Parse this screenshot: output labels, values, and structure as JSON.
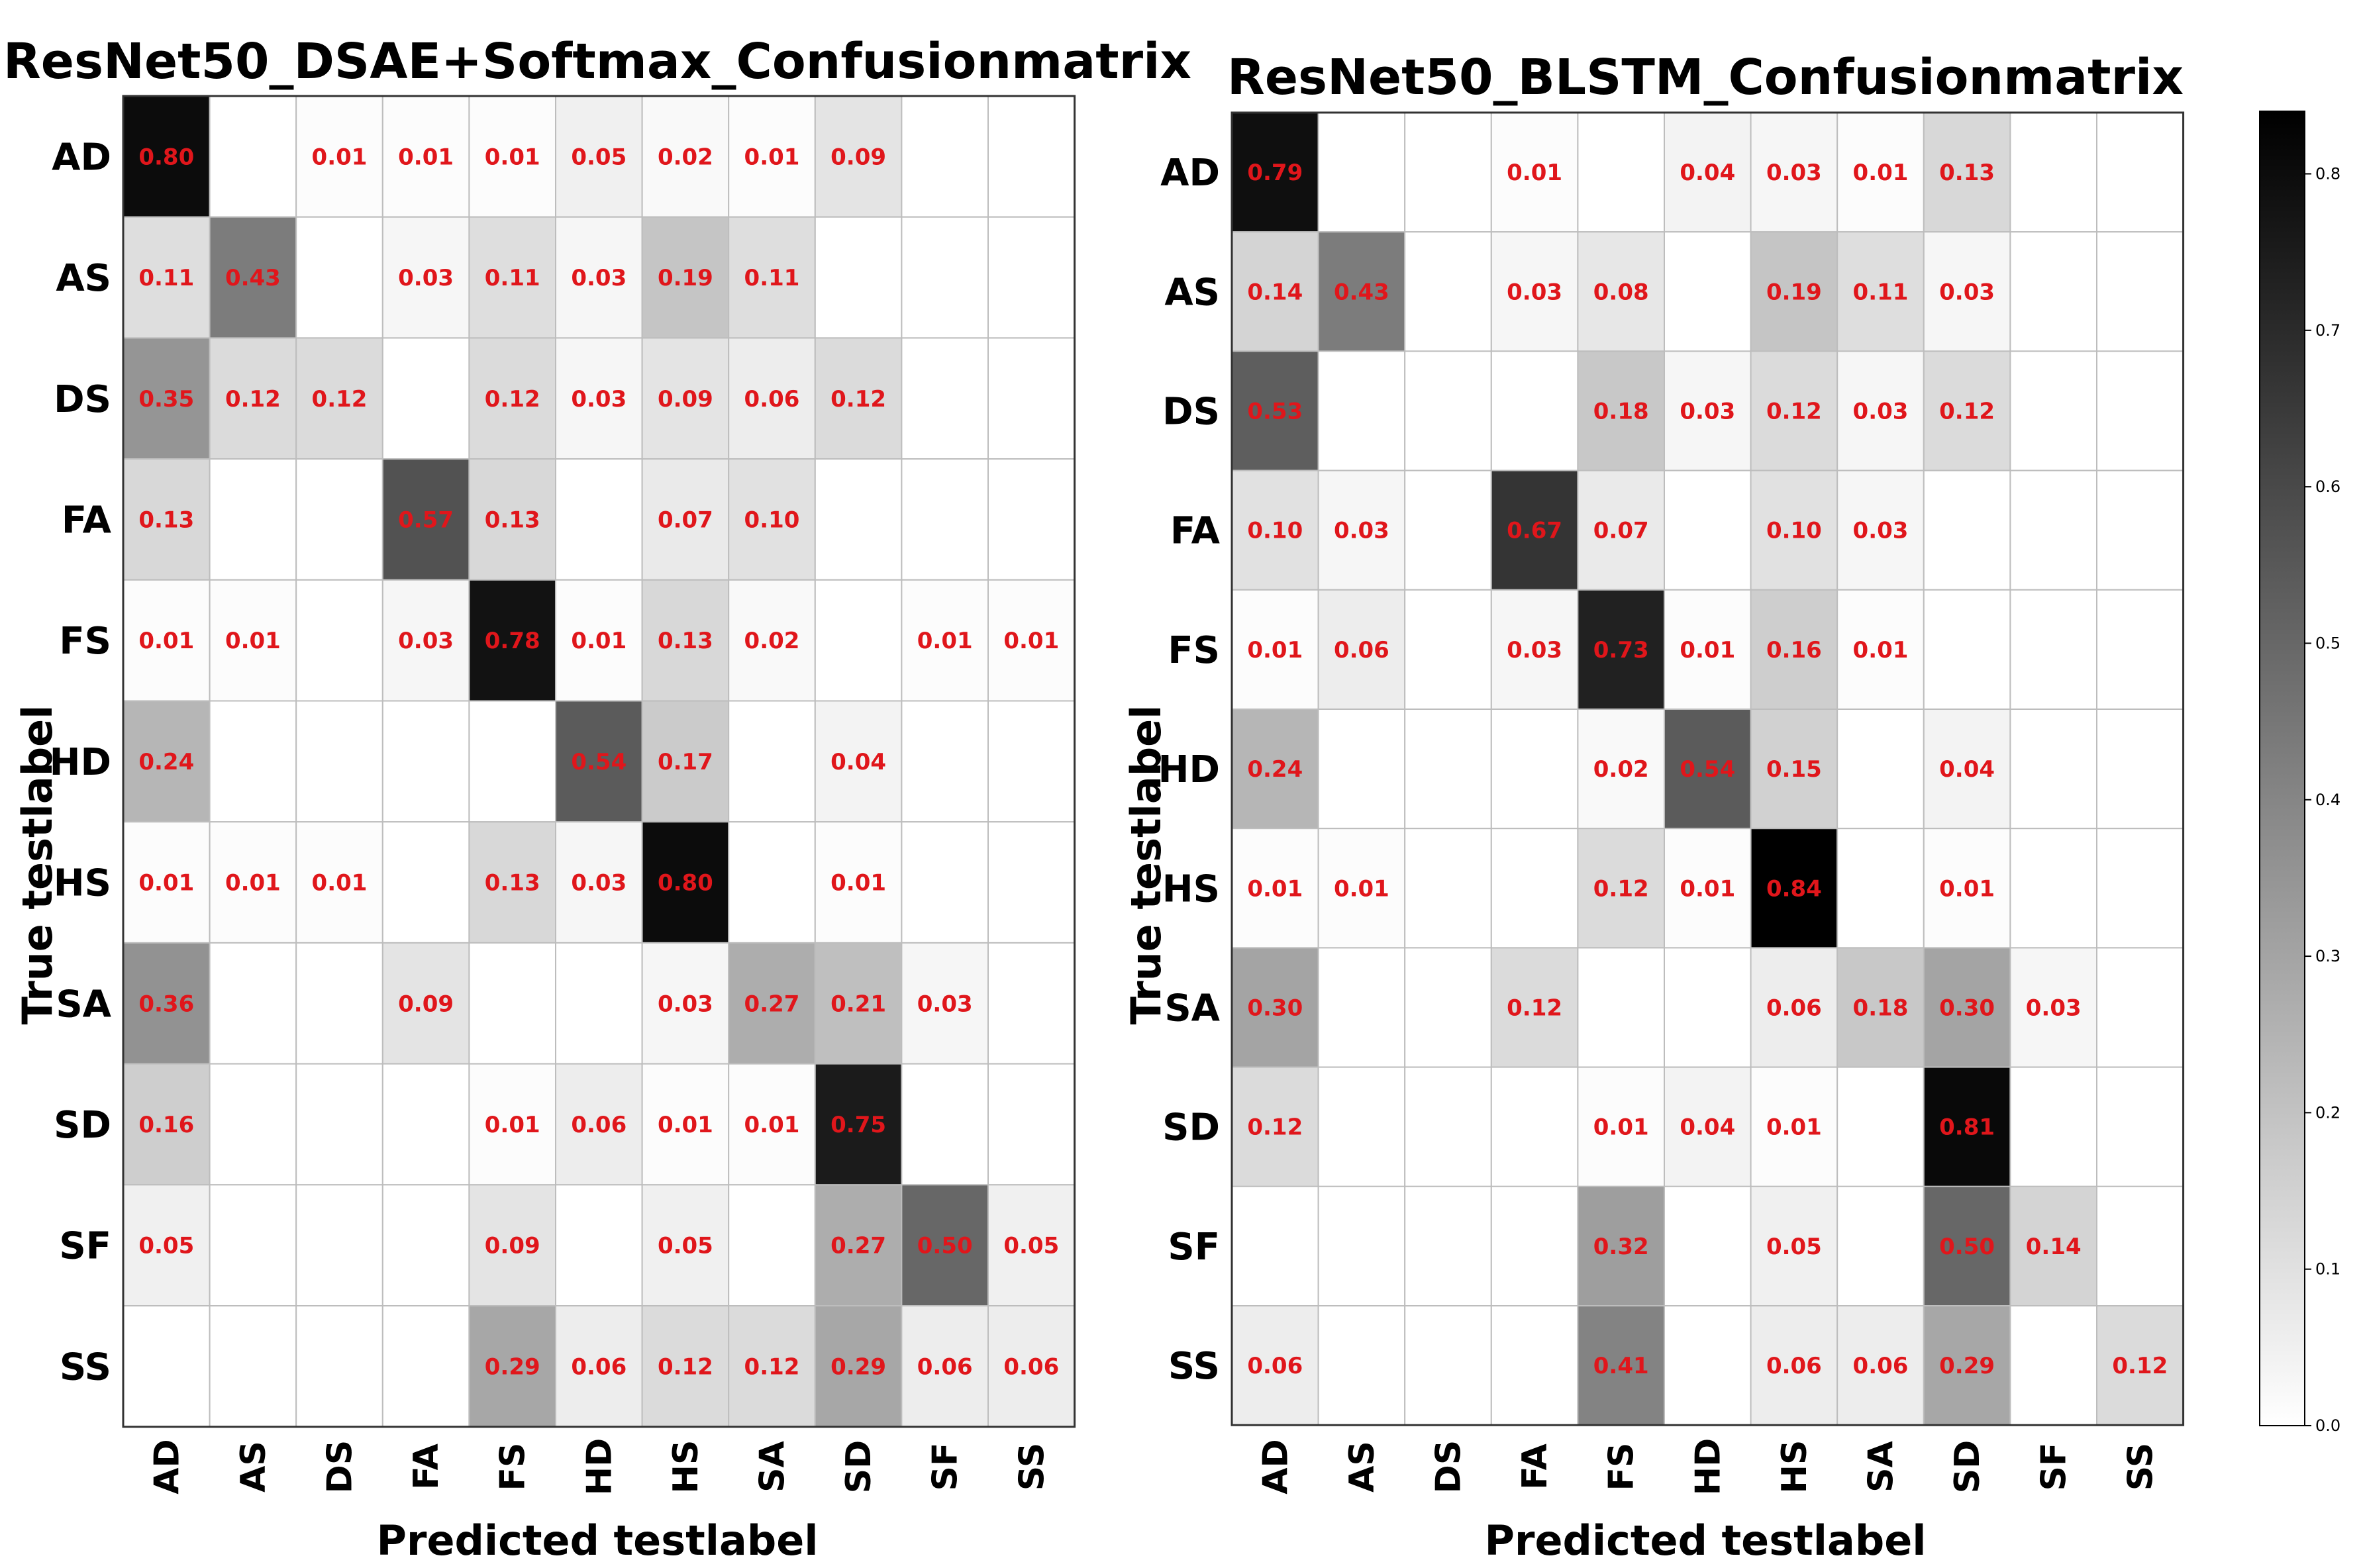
{
  "chart_data": [
    {
      "type": "heatmap",
      "title": "ResNet50_DSAE+Softmax_Confusionmatrix",
      "xlabel": "Predicted testlabel",
      "ylabel": "True  testlabel",
      "rows": [
        "AD",
        "AS",
        "DS",
        "FA",
        "FS",
        "HD",
        "HS",
        "SA",
        "SD",
        "SF",
        "SS"
      ],
      "cols": [
        "AD",
        "AS",
        "DS",
        "FA",
        "FS",
        "HD",
        "HS",
        "SA",
        "SD",
        "SF",
        "SS"
      ],
      "values": [
        [
          0.8,
          null,
          0.01,
          0.01,
          0.01,
          0.05,
          0.02,
          0.01,
          0.09,
          null,
          null
        ],
        [
          0.11,
          0.43,
          null,
          0.03,
          0.11,
          0.03,
          0.19,
          0.11,
          null,
          null,
          null
        ],
        [
          0.35,
          0.12,
          0.12,
          null,
          0.12,
          0.03,
          0.09,
          0.06,
          0.12,
          null,
          null
        ],
        [
          0.13,
          null,
          null,
          0.57,
          0.13,
          null,
          0.07,
          0.1,
          null,
          null,
          null
        ],
        [
          0.01,
          0.01,
          null,
          0.03,
          0.78,
          0.01,
          0.13,
          0.02,
          null,
          0.01,
          0.01
        ],
        [
          0.24,
          null,
          null,
          null,
          null,
          0.54,
          0.17,
          null,
          0.04,
          null,
          null
        ],
        [
          0.01,
          0.01,
          0.01,
          null,
          0.13,
          0.03,
          0.8,
          null,
          0.01,
          null,
          null
        ],
        [
          0.36,
          null,
          null,
          0.09,
          null,
          null,
          0.03,
          0.27,
          0.21,
          0.03,
          null
        ],
        [
          0.16,
          null,
          null,
          null,
          0.01,
          0.06,
          0.01,
          0.01,
          0.75,
          null,
          null
        ],
        [
          0.05,
          null,
          null,
          null,
          0.09,
          null,
          0.05,
          null,
          0.27,
          0.5,
          0.05
        ],
        [
          null,
          null,
          null,
          null,
          0.29,
          0.06,
          0.12,
          0.12,
          0.29,
          0.06,
          0.06
        ]
      ]
    },
    {
      "type": "heatmap",
      "title": "ResNet50_BLSTM_Confusionmatrix",
      "xlabel": "Predicted testlabel",
      "ylabel": "True  testlabel",
      "rows": [
        "AD",
        "AS",
        "DS",
        "FA",
        "FS",
        "HD",
        "HS",
        "SA",
        "SD",
        "SF",
        "SS"
      ],
      "cols": [
        "AD",
        "AS",
        "DS",
        "FA",
        "FS",
        "HD",
        "HS",
        "SA",
        "SD",
        "SF",
        "SS"
      ],
      "values": [
        [
          0.79,
          null,
          null,
          0.01,
          null,
          0.04,
          0.03,
          0.01,
          0.13,
          null,
          null
        ],
        [
          0.14,
          0.43,
          null,
          0.03,
          0.08,
          null,
          0.19,
          0.11,
          0.03,
          null,
          null
        ],
        [
          0.53,
          null,
          null,
          null,
          0.18,
          0.03,
          0.12,
          0.03,
          0.12,
          null,
          null
        ],
        [
          0.1,
          0.03,
          null,
          0.67,
          0.07,
          null,
          0.1,
          0.03,
          null,
          null,
          null
        ],
        [
          0.01,
          0.06,
          null,
          0.03,
          0.73,
          0.01,
          0.16,
          0.01,
          null,
          null,
          null
        ],
        [
          0.24,
          null,
          null,
          null,
          0.02,
          0.54,
          0.15,
          null,
          0.04,
          null,
          null
        ],
        [
          0.01,
          0.01,
          null,
          null,
          0.12,
          0.01,
          0.84,
          null,
          0.01,
          null,
          null
        ],
        [
          0.3,
          null,
          null,
          0.12,
          null,
          null,
          0.06,
          0.18,
          0.3,
          0.03,
          null
        ],
        [
          0.12,
          null,
          null,
          null,
          0.01,
          0.04,
          0.01,
          null,
          0.81,
          null,
          null
        ],
        [
          null,
          null,
          null,
          null,
          0.32,
          null,
          0.05,
          null,
          0.5,
          0.14,
          null
        ],
        [
          0.06,
          null,
          null,
          null,
          0.41,
          null,
          0.06,
          0.06,
          0.29,
          null,
          0.12
        ]
      ]
    }
  ],
  "colorbar": {
    "min": 0.0,
    "max": 0.84,
    "ticks": [
      "0.0",
      "0.1",
      "0.2",
      "0.3",
      "0.4",
      "0.5",
      "0.6",
      "0.7",
      "0.8"
    ]
  },
  "colors": {
    "cell_text": "#e0161b",
    "grid": "#bdbdbd",
    "cmap_low": "#ffffff",
    "cmap_high": "#000000"
  }
}
